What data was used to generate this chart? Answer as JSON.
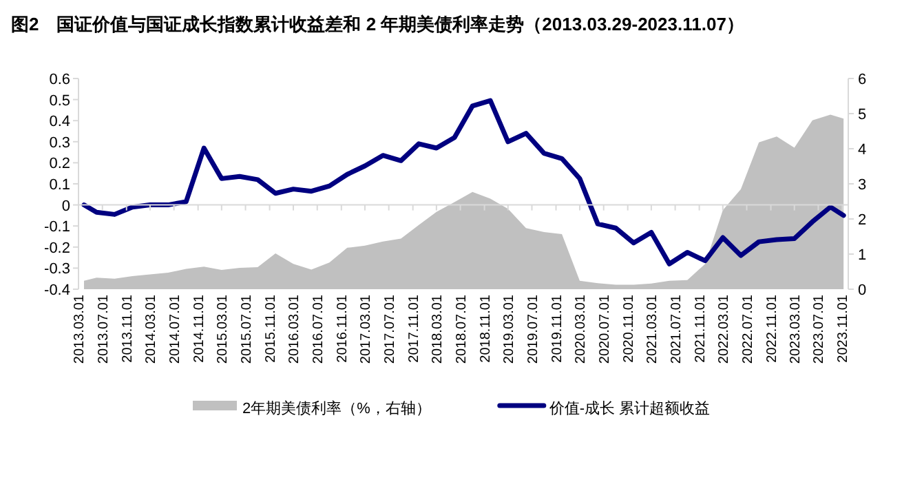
{
  "chart_data": {
    "type": "line",
    "title": "图2　国证价值与国证成长指数累计收益差和 2 年期美债利率走势（2013.03.29-2023.11.07）",
    "x": [
      "2013-03-29",
      "2013-06",
      "2013-09",
      "2013-12",
      "2014-03",
      "2014-06",
      "2014-09",
      "2014-12",
      "2015-03",
      "2015-06",
      "2015-09",
      "2015-12",
      "2016-03",
      "2016-06",
      "2016-09",
      "2016-12",
      "2017-03",
      "2017-06",
      "2017-09",
      "2017-12",
      "2018-03",
      "2018-06",
      "2018-09",
      "2018-12",
      "2019-03",
      "2019-06",
      "2019-09",
      "2019-12",
      "2020-03",
      "2020-06",
      "2020-09",
      "2020-12",
      "2021-03",
      "2021-06",
      "2021-09",
      "2021-12",
      "2022-03",
      "2022-06",
      "2022-09",
      "2022-12",
      "2023-03",
      "2023-06",
      "2023-09",
      "2023-11-07"
    ],
    "series": [
      {
        "name": "2年期美债利率（%，右轴）",
        "type": "area",
        "axis": "y2",
        "color": "#c0c0c0",
        "values": [
          0.24,
          0.33,
          0.3,
          0.37,
          0.42,
          0.47,
          0.58,
          0.64,
          0.55,
          0.61,
          0.63,
          1.02,
          0.72,
          0.56,
          0.76,
          1.18,
          1.24,
          1.36,
          1.44,
          1.83,
          2.2,
          2.48,
          2.77,
          2.58,
          2.29,
          1.74,
          1.63,
          1.57,
          0.24,
          0.17,
          0.13,
          0.13,
          0.16,
          0.24,
          0.26,
          0.72,
          2.25,
          2.85,
          4.18,
          4.35,
          4.03,
          4.81,
          4.97,
          4.86
        ]
      },
      {
        "name": "价值-成长 累计超额收益",
        "color": "#000080",
        "values": [
          0,
          -0.035,
          -0.045,
          -0.01,
          0,
          0,
          0.015,
          0.27,
          0.125,
          0.135,
          0.12,
          0.055,
          0.075,
          0.065,
          0.09,
          0.145,
          0.185,
          0.235,
          0.21,
          0.29,
          0.27,
          0.32,
          0.47,
          0.495,
          0.3,
          0.34,
          0.245,
          0.22,
          0.125,
          -0.09,
          -0.11,
          -0.18,
          -0.13,
          -0.28,
          -0.225,
          -0.265,
          -0.155,
          -0.24,
          -0.175,
          -0.165,
          -0.16,
          -0.08,
          -0.01,
          -0.05
        ]
      }
    ],
    "xlim": [
      "2013-03-01",
      "2023-12-01"
    ],
    "xticks": [
      {
        "value": "2013-03-01",
        "label": "2013.03.01"
      },
      {
        "value": "2013-07-01",
        "label": "2013.07.01"
      },
      {
        "value": "2013-11-01",
        "label": "2013.11.01"
      },
      {
        "value": "2014-03-01",
        "label": "2014.03.01"
      },
      {
        "value": "2014-07-01",
        "label": "2014.07.01"
      },
      {
        "value": "2014-11-01",
        "label": "2014.11.01"
      },
      {
        "value": "2015-03-01",
        "label": "2015.03.01"
      },
      {
        "value": "2015-07-01",
        "label": "2015.07.01"
      },
      {
        "value": "2015-11-01",
        "label": "2015.11.01"
      },
      {
        "value": "2016-03-01",
        "label": "2016.03.01"
      },
      {
        "value": "2016-07-01",
        "label": "2016.07.01"
      },
      {
        "value": "2016-11-01",
        "label": "2016.11.01"
      },
      {
        "value": "2017-03-01",
        "label": "2017.03.01"
      },
      {
        "value": "2017-07-01",
        "label": "2017.07.01"
      },
      {
        "value": "2017-11-01",
        "label": "2017.11.01"
      },
      {
        "value": "2018-03-01",
        "label": "2018.03.01"
      },
      {
        "value": "2018-07-01",
        "label": "2018.07.01"
      },
      {
        "value": "2018-11-01",
        "label": "2018.11.01"
      },
      {
        "value": "2019-03-01",
        "label": "2019.03.01"
      },
      {
        "value": "2019-07-01",
        "label": "2019.07.01"
      },
      {
        "value": "2019-11-01",
        "label": "2019.11.01"
      },
      {
        "value": "2020-03-01",
        "label": "2020.03.01"
      },
      {
        "value": "2020-07-01",
        "label": "2020.07.01"
      },
      {
        "value": "2020-11-01",
        "label": "2020.11.01"
      },
      {
        "value": "2021-03-01",
        "label": "2021.03.01"
      },
      {
        "value": "2021-07-01",
        "label": "2021.07.01"
      },
      {
        "value": "2021-11-01",
        "label": "2021.11.01"
      },
      {
        "value": "2022-03-01",
        "label": "2022.03.01"
      },
      {
        "value": "2022-07-01",
        "label": "2022.07.01"
      },
      {
        "value": "2022-11-01",
        "label": "2022.11.01"
      },
      {
        "value": "2023-03-01",
        "label": "2023.03.01"
      },
      {
        "value": "2023-07-01",
        "label": "2023.07.01"
      },
      {
        "value": "2023-11-01",
        "label": "2023.11.01"
      }
    ],
    "ylim": [
      -0.4,
      0.6
    ],
    "yticks": [
      -0.4,
      -0.3,
      -0.2,
      -0.1,
      0,
      0.1,
      0.2,
      0.3,
      0.4,
      0.5,
      0.6
    ],
    "y2lim": [
      0,
      6
    ],
    "y2ticks": [
      0,
      1,
      2,
      3,
      4,
      5,
      6
    ],
    "legend": "bottom"
  }
}
